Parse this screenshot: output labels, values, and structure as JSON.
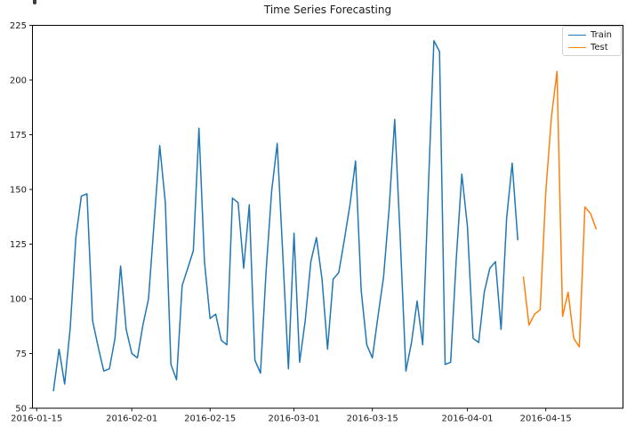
{
  "figure": {
    "background": "#ffffff",
    "corner_artifact": "clipped-text-fragment"
  },
  "legend": {
    "position": "upper right",
    "items": [
      {
        "label": "Train",
        "color": "#1f77b4"
      },
      {
        "label": "Test",
        "color": "#ff7f0e"
      }
    ]
  },
  "chart_data": {
    "type": "line",
    "title": "Time Series Forecasting",
    "xlabel": "",
    "ylabel": "",
    "grid": false,
    "legend_position": "upper right",
    "ylim": [
      50,
      225
    ],
    "yticks": [
      50,
      75,
      100,
      125,
      150,
      175,
      200,
      225
    ],
    "xlim_days": [
      -0.75,
      104.8
    ],
    "x_epoch": "2016-01-15",
    "xticks": [
      {
        "date": "2016-01-15",
        "label": "2016-01-15"
      },
      {
        "date": "2016-02-01",
        "label": "2016-02-01"
      },
      {
        "date": "2016-02-15",
        "label": "2016-02-15"
      },
      {
        "date": "2016-03-01",
        "label": "2016-03-01"
      },
      {
        "date": "2016-03-15",
        "label": "2016-03-15"
      },
      {
        "date": "2016-04-01",
        "label": "2016-04-01"
      },
      {
        "date": "2016-04-15",
        "label": "2016-04-15"
      }
    ],
    "frequency": "daily",
    "series": [
      {
        "name": "Train",
        "color": "#1f77b4",
        "start_date": "2016-01-18",
        "values": [
          58,
          77,
          61,
          87,
          128,
          147,
          148,
          90,
          78,
          67,
          68,
          82,
          115,
          86,
          75,
          73,
          88,
          100,
          135,
          170,
          144,
          70,
          63,
          106,
          114,
          122,
          178,
          117,
          91,
          93,
          81,
          79,
          146,
          144,
          114,
          143,
          72,
          66,
          112,
          149,
          171,
          120,
          68,
          130,
          71,
          90,
          117,
          128,
          109,
          77,
          109,
          112,
          127,
          143,
          163,
          104,
          79,
          73,
          92,
          110,
          141,
          182,
          127,
          67,
          80,
          99,
          79,
          150,
          218,
          213,
          70,
          71,
          118,
          157,
          133,
          82,
          80,
          103,
          114,
          117,
          86,
          137,
          162,
          127
        ]
      },
      {
        "name": "Test",
        "color": "#ff7f0e",
        "start_date": "2016-04-11",
        "values": [
          110,
          88,
          93,
          95,
          149,
          183,
          204,
          92,
          103,
          82,
          78,
          142,
          139,
          132
        ]
      }
    ],
    "axis_color": "#000000",
    "tick_label_color": "#1a1a1a",
    "tick_label_fontsize": 10,
    "title_fontsize": 12
  }
}
